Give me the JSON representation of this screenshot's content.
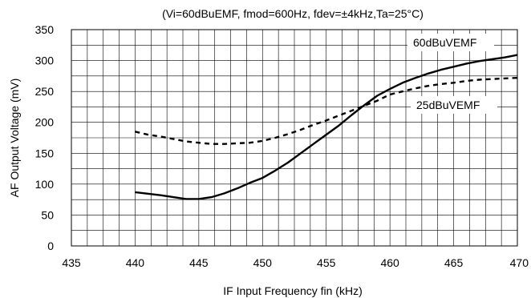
{
  "chart_data": {
    "type": "line",
    "title": "(Vi=60dBuEMF, fmod=600Hz, fdev=±4kHz,Ta=25°C)",
    "xlabel": "IF Input Frequency fin (kHz)",
    "ylabel": "AF Output Voltage (mV)",
    "xlim": [
      435,
      470
    ],
    "ylim": [
      0,
      350
    ],
    "x_ticks": [
      435,
      440,
      445,
      450,
      455,
      460,
      465,
      470
    ],
    "y_ticks": [
      0,
      50,
      100,
      150,
      200,
      250,
      300,
      350
    ],
    "grid": true,
    "series": [
      {
        "name": "60dBuVEMF",
        "style": "solid",
        "x": [
          440,
          442,
          443,
          444,
          445,
          446,
          447,
          448,
          449,
          450,
          451,
          452,
          453,
          454,
          455,
          456,
          457,
          458,
          459,
          460,
          461,
          462,
          463,
          464,
          465,
          466,
          467,
          468,
          469,
          470
        ],
        "y": [
          87,
          82,
          79,
          76,
          76,
          79,
          85,
          93,
          102,
          110,
          122,
          135,
          150,
          165,
          180,
          195,
          212,
          228,
          243,
          254,
          264,
          272,
          279,
          285,
          290,
          295,
          299,
          302,
          305,
          309
        ]
      },
      {
        "name": "25dBuVEMF",
        "style": "dashed",
        "x": [
          440,
          441,
          442,
          443,
          444,
          445,
          446,
          447,
          448,
          449,
          450,
          451,
          452,
          453,
          454,
          455,
          456,
          457,
          458,
          459,
          460,
          461,
          462,
          463,
          464,
          465,
          466,
          467,
          468,
          469,
          470
        ],
        "y": [
          185,
          180,
          177,
          173,
          169,
          167,
          165,
          165,
          166,
          167,
          170,
          175,
          181,
          188,
          196,
          203,
          211,
          219,
          227,
          235,
          245,
          250,
          255,
          259,
          262,
          264,
          267,
          269,
          270,
          271,
          272
        ]
      }
    ],
    "colors": {
      "line": "#000000",
      "grid": "#000000",
      "background": "#ffffff"
    }
  }
}
